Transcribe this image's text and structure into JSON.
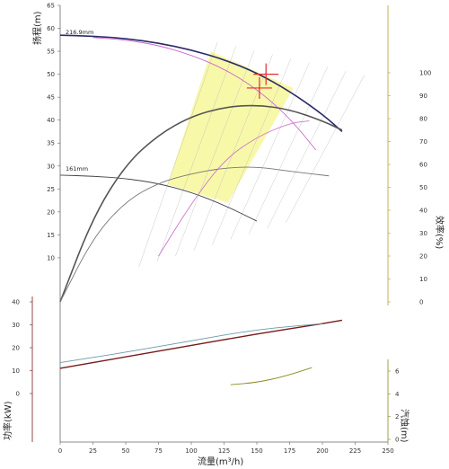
{
  "chart_data": {
    "type": "line",
    "xlabel": "流量(m³/h)",
    "x_ticks": [
      0,
      25,
      50,
      75,
      100,
      125,
      150,
      175,
      200,
      225,
      250
    ],
    "x_range": [
      0,
      250
    ],
    "head_axis": {
      "label": "扬程(m)",
      "ticks": [
        10,
        15,
        20,
        25,
        30,
        35,
        40,
        45,
        50,
        55,
        60,
        65
      ],
      "range": [
        0,
        65
      ],
      "color": "#2a2a7a"
    },
    "efficiency_axis": {
      "label": "效率(%)",
      "ticks": [
        0,
        10,
        20,
        30,
        40,
        50,
        60,
        70,
        80,
        90,
        100
      ],
      "range": [
        0,
        100
      ],
      "color": "#b0a030"
    },
    "power_axis": {
      "label": "功率(kW)",
      "ticks": [
        0,
        10,
        20,
        30,
        40
      ],
      "range": [
        0,
        40
      ],
      "color": "#7a1a1a"
    },
    "npsh_axis": {
      "label": "汽蚀(m)",
      "ticks": [
        0,
        2,
        4,
        6
      ],
      "range": [
        0,
        6
      ],
      "color": "#8a8a20"
    },
    "impeller_labels": [
      "216.9mm",
      "161mm"
    ],
    "series": [
      {
        "role": "head-max",
        "color": "#2a2a6a",
        "x": [
          0,
          25,
          50,
          75,
          100,
          125,
          150,
          175,
          200,
          215
        ],
        "y": [
          58.5,
          58.3,
          57.8,
          56.8,
          55.3,
          53.2,
          50.3,
          46.3,
          41.3,
          37.5
        ]
      },
      {
        "role": "head-min",
        "color": "#444444",
        "x": [
          0,
          25,
          50,
          75,
          100,
          125,
          150
        ],
        "y": [
          28,
          27.8,
          27.3,
          26.2,
          24.3,
          21.5,
          18
        ]
      },
      {
        "role": "head-mid",
        "color": "#cc66cc",
        "x": [
          25,
          50,
          75,
          100,
          125,
          150,
          175,
          195
        ],
        "y": [
          58,
          57.5,
          56.3,
          54.2,
          51.2,
          46.8,
          40.5,
          33.5
        ]
      },
      {
        "role": "efficiency-max",
        "color": "#555555",
        "x": [
          0,
          25,
          50,
          75,
          100,
          125,
          150,
          175,
          200,
          215
        ],
        "y": [
          0,
          37,
          60,
          73,
          81,
          85,
          86,
          84,
          79,
          75
        ]
      },
      {
        "role": "efficiency-min",
        "color": "#777777",
        "x": [
          0,
          25,
          50,
          75,
          100,
          125,
          150,
          175,
          205
        ],
        "y": [
          0,
          28,
          44,
          52,
          56,
          58.5,
          59,
          57,
          55
        ]
      },
      {
        "role": "efficiency-mid",
        "color": "#cc77cc",
        "x": [
          75,
          100,
          125,
          150,
          175,
          190
        ],
        "y": [
          20,
          43,
          62,
          72,
          78,
          79
        ]
      },
      {
        "role": "power-max",
        "color": "#7a1a1a",
        "x": [
          0,
          50,
          100,
          150,
          200,
          215
        ],
        "y": [
          11,
          16,
          21,
          26,
          30.5,
          32
        ]
      },
      {
        "role": "power-min",
        "color": "#6a9aaa",
        "x": [
          0,
          50,
          100,
          150,
          200
        ],
        "y": [
          13.5,
          18,
          23,
          28,
          30.5
        ]
      },
      {
        "role": "npsh",
        "color": "#8a8a20",
        "x": [
          130,
          150,
          170,
          192
        ],
        "y": [
          4.8,
          5,
          5.5,
          6.3
        ]
      }
    ],
    "operating_point": {
      "x": 157,
      "y": 50,
      "color": "#e03030"
    },
    "operating_point_2": {
      "x": 152,
      "y": 47,
      "color": "#e03030"
    },
    "recommended_region": {
      "color": "#f7f79a",
      "x": [
        82,
        115,
        178,
        128
      ],
      "y": [
        26,
        55,
        47,
        22
      ]
    },
    "grid": false,
    "legend": "none"
  }
}
